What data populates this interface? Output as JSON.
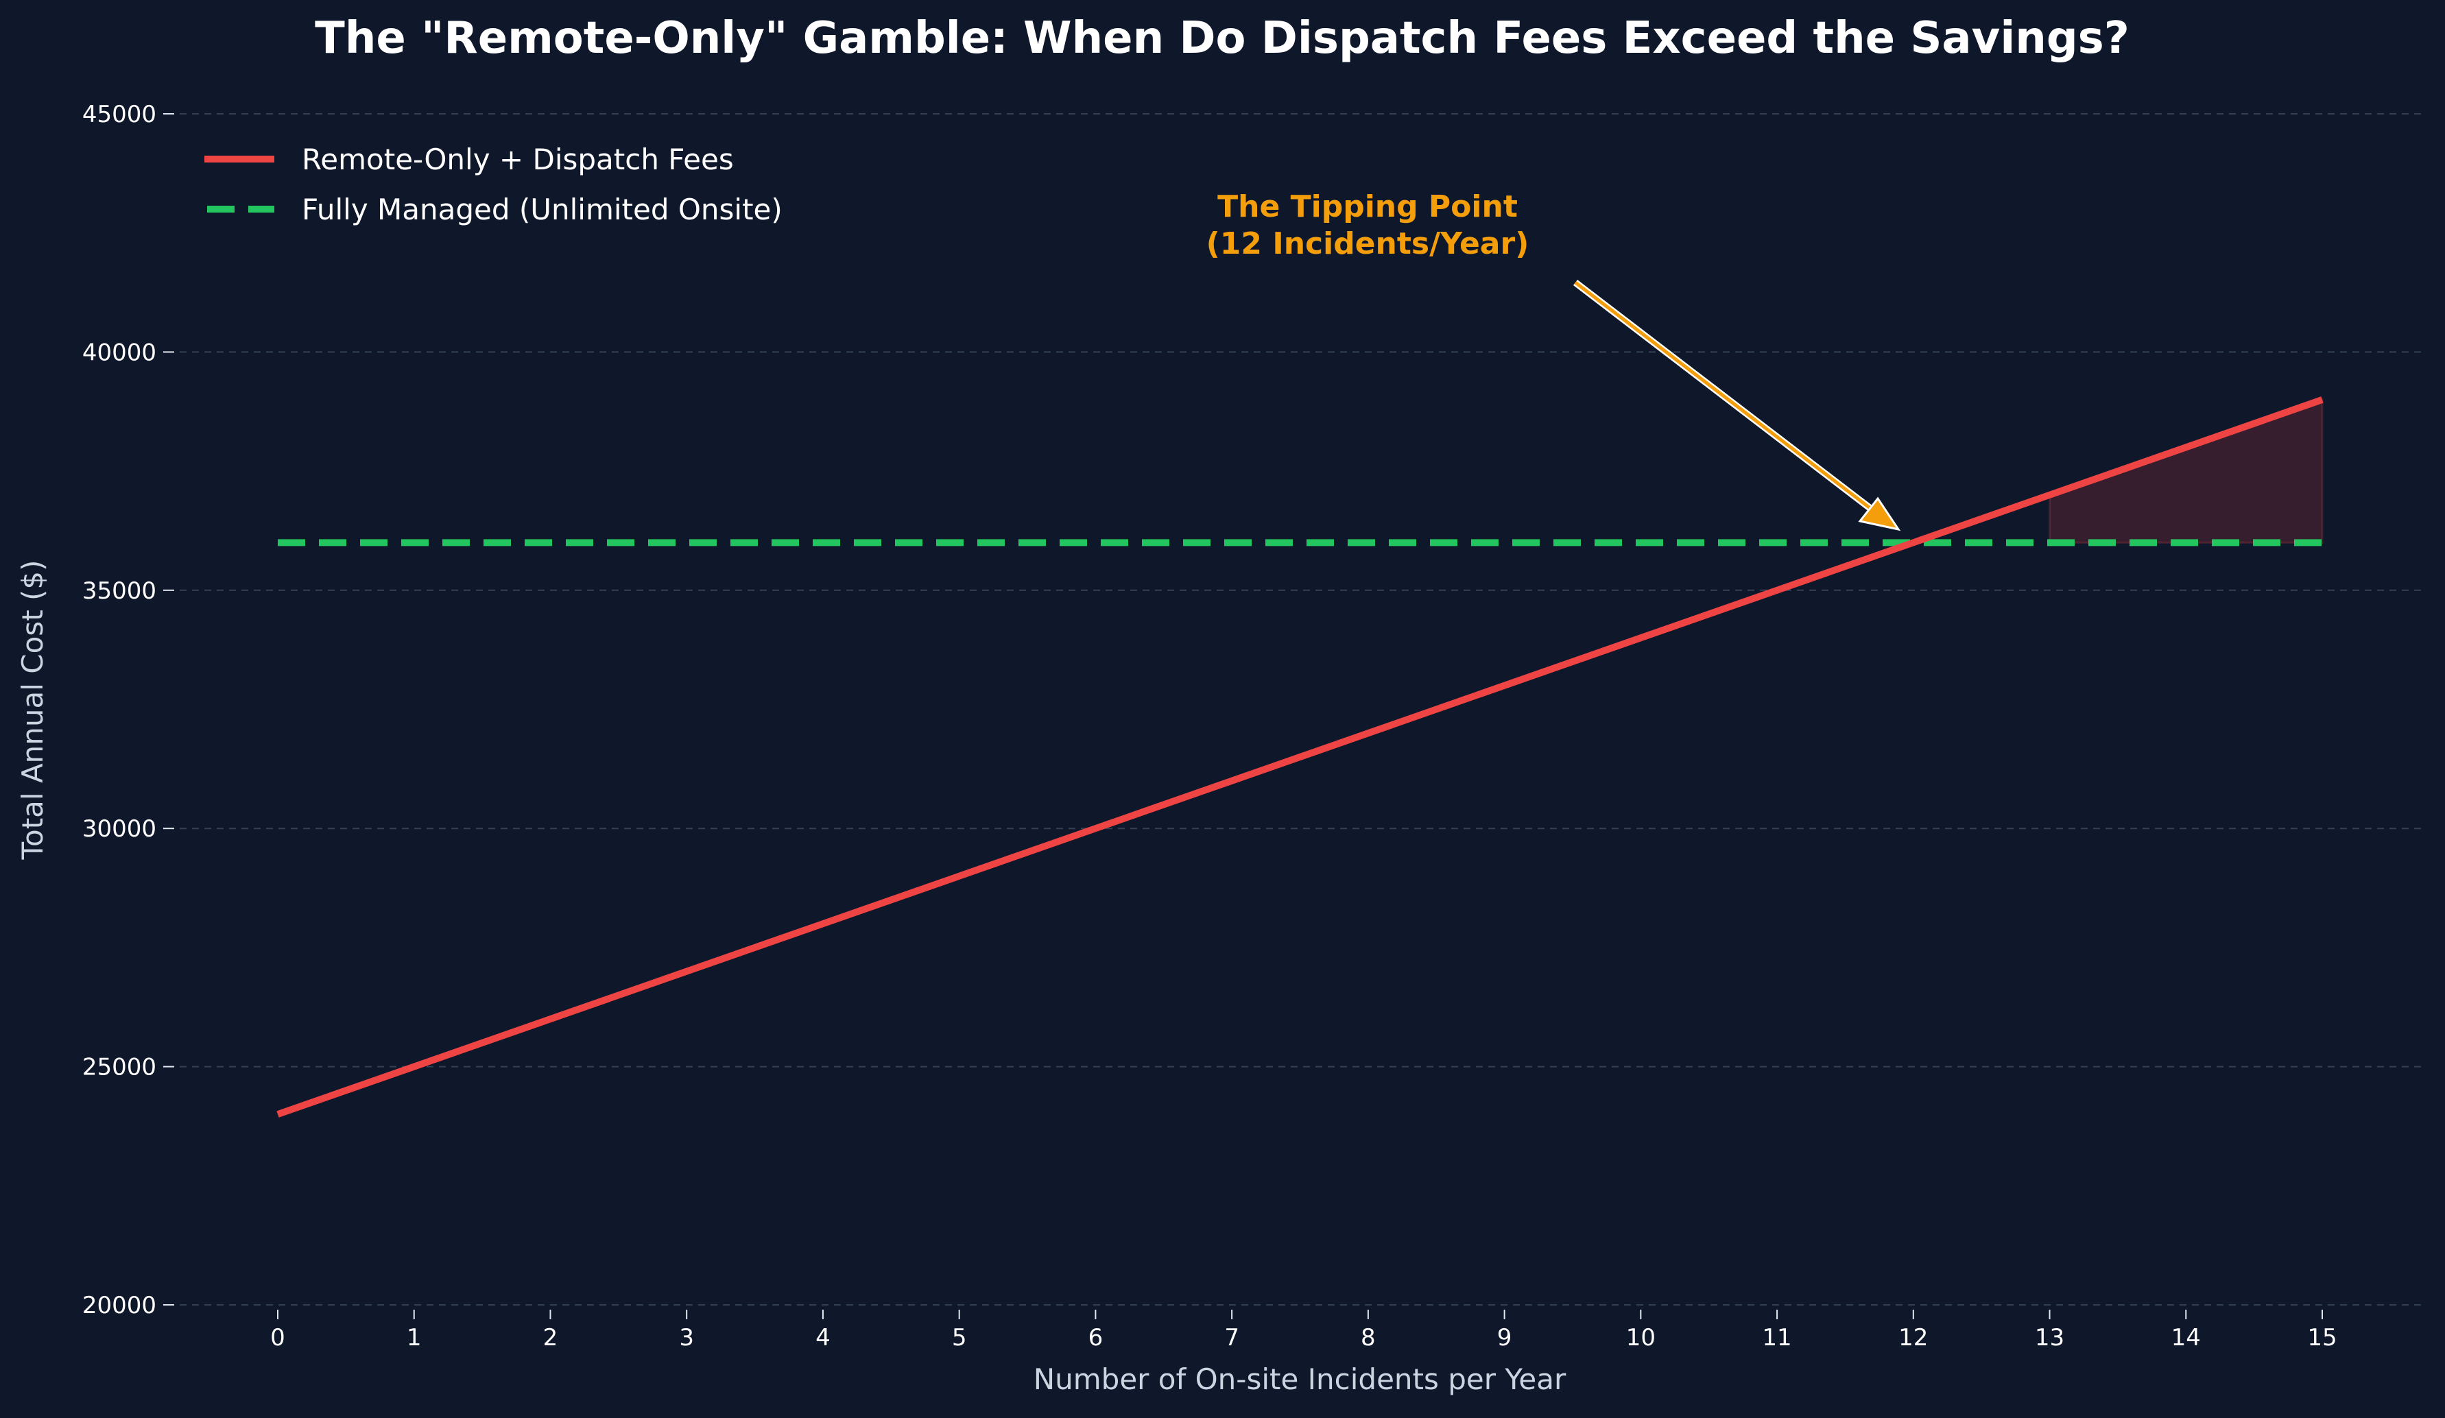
{
  "chart_data": {
    "type": "line",
    "title": "The \"Remote-Only\" Gamble: When Do Dispatch Fees Exceed the Savings?",
    "xlabel": "Number of On-site Incidents per Year",
    "ylabel": "Total Annual Cost ($)",
    "xlim": [
      -0.5,
      15.5
    ],
    "ylim": [
      20000,
      45000
    ],
    "xticks": [
      "0",
      "1",
      "2",
      "3",
      "4",
      "5",
      "6",
      "7",
      "8",
      "9",
      "10",
      "11",
      "12",
      "13",
      "14",
      "15"
    ],
    "yticks": [
      "20000",
      "25000",
      "30000",
      "35000",
      "40000",
      "45000"
    ],
    "grid": "y dashed",
    "legend_position": "top-left",
    "background": "#0f172a",
    "x": [
      0,
      1,
      2,
      3,
      4,
      5,
      6,
      7,
      8,
      9,
      10,
      11,
      12,
      13,
      14,
      15
    ],
    "series": [
      {
        "name": "Remote-Only + Dispatch Fees",
        "style": "solid",
        "color": "#ef4444",
        "values": [
          24000,
          25000,
          26000,
          27000,
          28000,
          29000,
          30000,
          31000,
          32000,
          33000,
          34000,
          35000,
          36000,
          37000,
          38000,
          39000
        ]
      },
      {
        "name": "Fully Managed (Unlimited Onsite)",
        "style": "dashed",
        "color": "#22c55e",
        "values": [
          36000,
          36000,
          36000,
          36000,
          36000,
          36000,
          36000,
          36000,
          36000,
          36000,
          36000,
          36000,
          36000,
          36000,
          36000,
          36000
        ]
      }
    ],
    "shaded_region": {
      "x_from": 13,
      "x_to": 15,
      "between": [
        "Remote-Only + Dispatch Fees",
        "Fully Managed (Unlimited Onsite)"
      ],
      "color": "#ef4444"
    },
    "annotation": {
      "line1": "The Tipping Point",
      "line2": "(12 Incidents/Year)",
      "target": [
        12,
        36000
      ],
      "text_at": [
        8,
        42500
      ],
      "color": "#f59e0b"
    }
  }
}
